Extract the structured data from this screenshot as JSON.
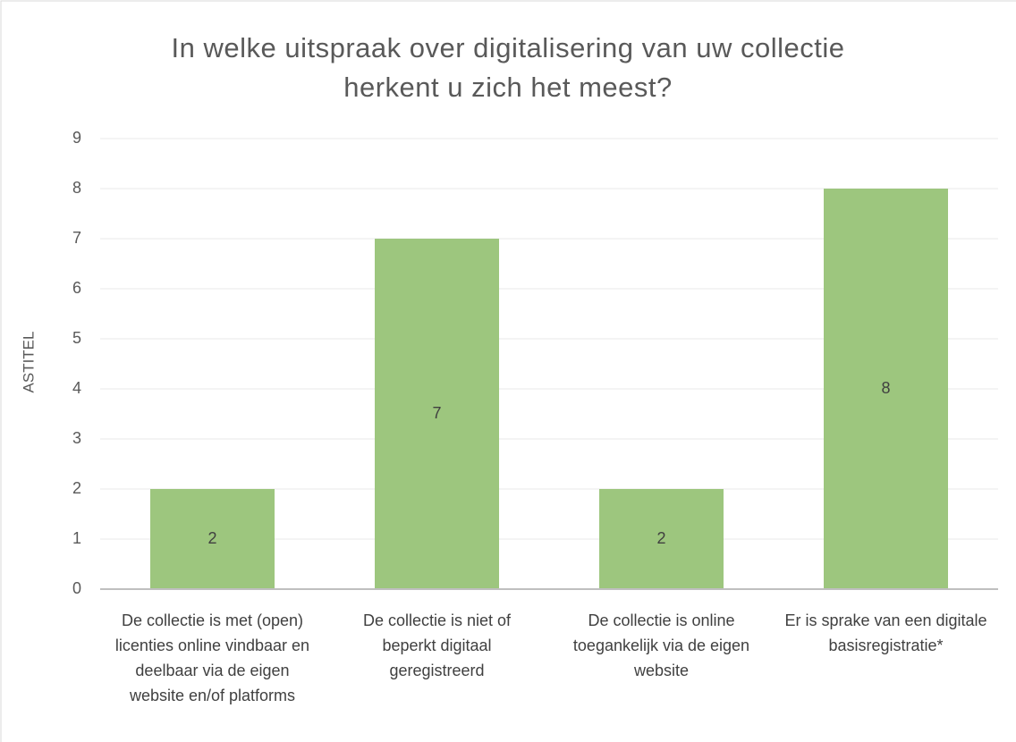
{
  "chart_data": {
    "type": "bar",
    "title": "In welke uitspraak over digitalisering van uw collectie herkent u zich het meest?",
    "y_label": "ASTITEL",
    "categories": [
      "De collectie is met (open) licenties online vindbaar en deelbaar via de eigen website en/of platforms",
      "De collectie is niet of beperkt digitaal geregistreerd",
      "De collectie is online toegankelijk via de eigen website",
      "Er is sprake van een digitale basisregistratie*"
    ],
    "values": [
      2,
      7,
      2,
      8
    ],
    "color": "#9dc67e",
    "ylim": [
      0,
      9
    ],
    "yticks": [
      0,
      1,
      2,
      3,
      4,
      5,
      6,
      7,
      8,
      9
    ],
    "grid": true
  }
}
